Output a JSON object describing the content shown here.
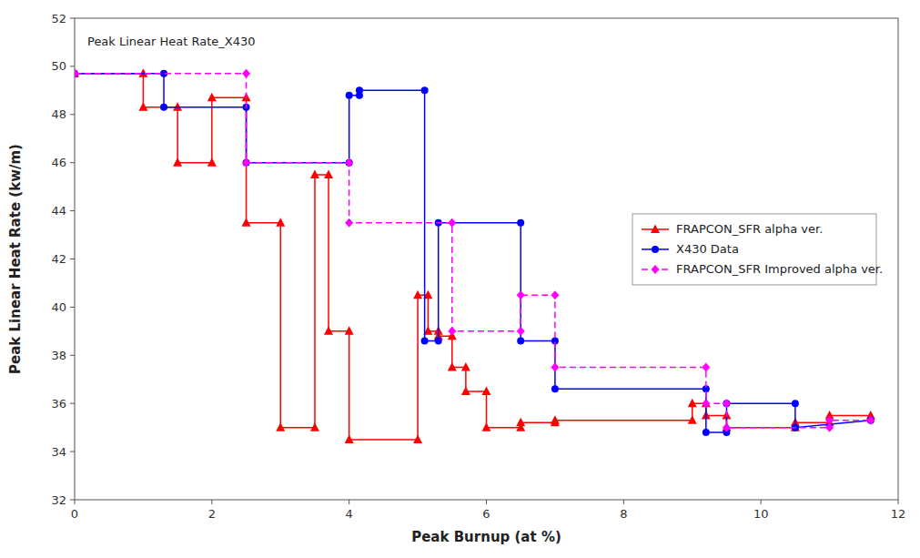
{
  "chart_data": {
    "type": "line",
    "annotation": "Peak Linear Heat Rate_X430",
    "xlabel": "Peak Burnup (at %)",
    "ylabel": "Peak Linear Heat Rate (kw/m)",
    "xlim": [
      0,
      12
    ],
    "ylim": [
      32,
      52
    ],
    "xticks": [
      0,
      2,
      4,
      6,
      8,
      10,
      12
    ],
    "yticks": [
      32,
      34,
      36,
      38,
      40,
      42,
      44,
      46,
      48,
      50,
      52
    ],
    "grid": false,
    "legend": "right",
    "series": [
      {
        "name": "FRAPCON_SFR alpha ver.",
        "color": "#FF0000",
        "marker": "triangle",
        "line_style": "solid",
        "x": [
          0.0,
          1.0,
          1.0,
          1.5,
          1.5,
          2.0,
          2.0,
          2.5,
          2.5,
          3.0,
          3.0,
          3.5,
          3.5,
          3.7,
          3.7,
          4.0,
          4.0,
          5.0,
          5.0,
          5.15,
          5.15,
          5.3,
          5.3,
          5.5,
          5.5,
          5.7,
          5.7,
          6.0,
          6.0,
          6.5,
          6.5,
          7.0,
          7.0,
          9.0,
          9.0,
          9.2,
          9.2,
          9.5,
          9.5,
          10.5,
          10.5,
          11.0,
          11.0,
          11.6
        ],
        "values": [
          49.7,
          49.7,
          48.3,
          48.3,
          46.0,
          46.0,
          48.7,
          48.7,
          43.5,
          43.5,
          35.0,
          35.0,
          45.5,
          45.5,
          39.0,
          39.0,
          34.5,
          34.5,
          40.5,
          40.5,
          39.0,
          39.0,
          38.8,
          38.8,
          37.5,
          37.5,
          36.5,
          36.5,
          35.0,
          35.0,
          35.2,
          35.2,
          35.3,
          35.3,
          36.0,
          36.0,
          35.5,
          35.5,
          35.0,
          35.0,
          35.2,
          35.2,
          35.5,
          35.5
        ]
      },
      {
        "name": "X430 Data",
        "color": "#0000FF",
        "marker": "circle",
        "line_style": "solid",
        "x": [
          0.0,
          1.3,
          1.3,
          2.5,
          2.5,
          4.0,
          4.0,
          4.15,
          4.15,
          5.1,
          5.1,
          5.3,
          5.3,
          6.5,
          6.5,
          7.0,
          7.0,
          9.2,
          9.2,
          9.5,
          9.5,
          10.5,
          10.5,
          11.6
        ],
        "values": [
          49.7,
          49.7,
          48.3,
          48.3,
          46.0,
          46.0,
          48.8,
          48.8,
          49.0,
          49.0,
          38.6,
          38.6,
          43.5,
          43.5,
          38.6,
          38.6,
          36.6,
          36.6,
          34.8,
          34.8,
          36.0,
          36.0,
          35.0,
          35.3
        ]
      },
      {
        "name": "FRAPCON_SFR Improved alpha ver.",
        "color": "#FF00FF",
        "marker": "diamond",
        "line_style": "dashed",
        "x": [
          0.0,
          2.5,
          2.5,
          4.0,
          4.0,
          5.5,
          5.5,
          6.5,
          6.5,
          7.0,
          7.0,
          9.2,
          9.2,
          9.5,
          9.5,
          11.0,
          11.0,
          11.6
        ],
        "values": [
          49.7,
          49.7,
          46.0,
          46.0,
          43.5,
          43.5,
          39.0,
          39.0,
          40.5,
          40.5,
          37.5,
          37.5,
          36.0,
          36.0,
          35.0,
          35.0,
          35.3,
          35.3
        ]
      }
    ]
  }
}
